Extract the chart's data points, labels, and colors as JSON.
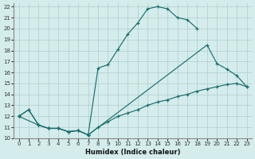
{
  "background_color": "#d4eceb",
  "grid_color": "#aecece",
  "line_color": "#1a7070",
  "xlabel": "Humidex (Indice chaleur)",
  "xlim": [
    -0.5,
    23.5
  ],
  "ylim": [
    10,
    22.3
  ],
  "xticks": [
    0,
    1,
    2,
    3,
    4,
    5,
    6,
    7,
    8,
    9,
    10,
    11,
    12,
    13,
    14,
    15,
    16,
    17,
    18,
    19,
    20,
    21,
    22,
    23
  ],
  "yticks": [
    10,
    11,
    12,
    13,
    14,
    15,
    16,
    17,
    18,
    19,
    20,
    21,
    22
  ],
  "line1_x": [
    0,
    1,
    2,
    3,
    4,
    5,
    6,
    7,
    8,
    9,
    10,
    11,
    12,
    13,
    14,
    15,
    16,
    17,
    18
  ],
  "line1_y": [
    12,
    12.6,
    11.2,
    10.9,
    10.9,
    10.6,
    10.7,
    10.3,
    16.4,
    16.7,
    18.1,
    19.5,
    20.5,
    21.8,
    22.0,
    21.8,
    21.0,
    20.8,
    20.0
  ],
  "line2_x": [
    0,
    2,
    3,
    4,
    5,
    6,
    7,
    19,
    20,
    21,
    22,
    23
  ],
  "line2_y": [
    12,
    11.2,
    10.9,
    10.9,
    10.6,
    10.7,
    10.3,
    18.5,
    16.8,
    16.3,
    15.7,
    14.7
  ],
  "line3_x": [
    0,
    1,
    2,
    3,
    4,
    5,
    6,
    7,
    8,
    9,
    10,
    11,
    12,
    13,
    14,
    15,
    16,
    17,
    18,
    19,
    20,
    21,
    22,
    23
  ],
  "line3_y": [
    12,
    12.6,
    11.2,
    10.9,
    10.9,
    10.6,
    10.7,
    10.3,
    11.0,
    11.5,
    12.0,
    12.3,
    12.6,
    13.0,
    13.3,
    13.5,
    13.8,
    14.0,
    14.3,
    14.5,
    14.7,
    14.9,
    15.0,
    14.7
  ]
}
